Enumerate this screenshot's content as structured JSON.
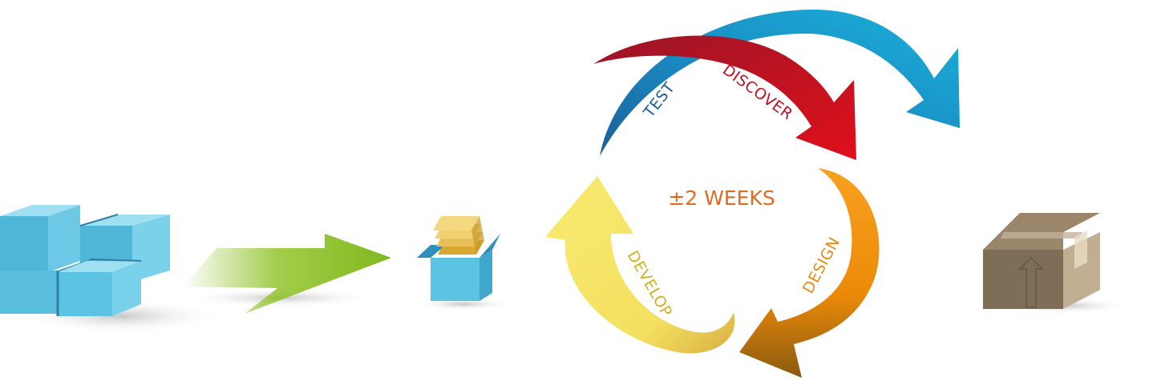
{
  "center_label": "±2 WEEKS",
  "cycle": {
    "test": "TEST",
    "discover": "DISCOVER",
    "design": "DESIGN",
    "develop": "DEVELOP"
  },
  "colors": {
    "blue": "#1a9fd0",
    "red": "#d01020",
    "orange": "#f09010",
    "yellow": "#f8e060",
    "green": "#8cc020",
    "cube": "#5cc4e2",
    "box": "#8a7a62",
    "center_text": "#e06a20"
  }
}
